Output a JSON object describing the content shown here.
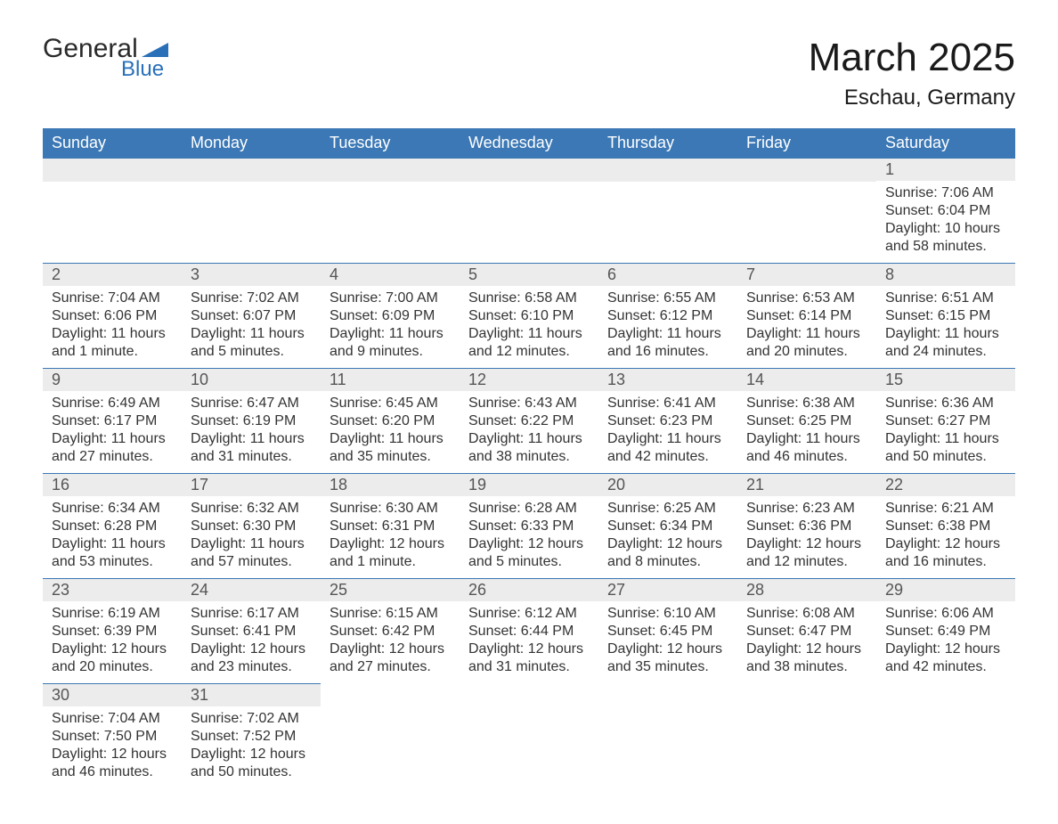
{
  "brand": {
    "word1": "General",
    "word2": "Blue"
  },
  "title": "March 2025",
  "location": "Eschau, Germany",
  "colors": {
    "header_bg": "#3b78b5",
    "header_fg": "#ffffff",
    "rule": "#3b78b5",
    "daynum_bg": "#ececec",
    "text": "#333333",
    "logo_accent": "#2970b8"
  },
  "typography": {
    "title_fontsize_pt": 33,
    "location_fontsize_pt": 18,
    "header_fontsize_pt": 14,
    "daynum_fontsize_pt": 14,
    "detail_fontsize_pt": 12
  },
  "calendar": {
    "columns": [
      "Sunday",
      "Monday",
      "Tuesday",
      "Wednesday",
      "Thursday",
      "Friday",
      "Saturday"
    ],
    "weeks": [
      [
        {
          "day": ""
        },
        {
          "day": ""
        },
        {
          "day": ""
        },
        {
          "day": ""
        },
        {
          "day": ""
        },
        {
          "day": ""
        },
        {
          "day": "1",
          "sunrise": "Sunrise: 7:06 AM",
          "sunset": "Sunset: 6:04 PM",
          "daylight1": "Daylight: 10 hours",
          "daylight2": "and 58 minutes."
        }
      ],
      [
        {
          "day": "2",
          "sunrise": "Sunrise: 7:04 AM",
          "sunset": "Sunset: 6:06 PM",
          "daylight1": "Daylight: 11 hours",
          "daylight2": "and 1 minute."
        },
        {
          "day": "3",
          "sunrise": "Sunrise: 7:02 AM",
          "sunset": "Sunset: 6:07 PM",
          "daylight1": "Daylight: 11 hours",
          "daylight2": "and 5 minutes."
        },
        {
          "day": "4",
          "sunrise": "Sunrise: 7:00 AM",
          "sunset": "Sunset: 6:09 PM",
          "daylight1": "Daylight: 11 hours",
          "daylight2": "and 9 minutes."
        },
        {
          "day": "5",
          "sunrise": "Sunrise: 6:58 AM",
          "sunset": "Sunset: 6:10 PM",
          "daylight1": "Daylight: 11 hours",
          "daylight2": "and 12 minutes."
        },
        {
          "day": "6",
          "sunrise": "Sunrise: 6:55 AM",
          "sunset": "Sunset: 6:12 PM",
          "daylight1": "Daylight: 11 hours",
          "daylight2": "and 16 minutes."
        },
        {
          "day": "7",
          "sunrise": "Sunrise: 6:53 AM",
          "sunset": "Sunset: 6:14 PM",
          "daylight1": "Daylight: 11 hours",
          "daylight2": "and 20 minutes."
        },
        {
          "day": "8",
          "sunrise": "Sunrise: 6:51 AM",
          "sunset": "Sunset: 6:15 PM",
          "daylight1": "Daylight: 11 hours",
          "daylight2": "and 24 minutes."
        }
      ],
      [
        {
          "day": "9",
          "sunrise": "Sunrise: 6:49 AM",
          "sunset": "Sunset: 6:17 PM",
          "daylight1": "Daylight: 11 hours",
          "daylight2": "and 27 minutes."
        },
        {
          "day": "10",
          "sunrise": "Sunrise: 6:47 AM",
          "sunset": "Sunset: 6:19 PM",
          "daylight1": "Daylight: 11 hours",
          "daylight2": "and 31 minutes."
        },
        {
          "day": "11",
          "sunrise": "Sunrise: 6:45 AM",
          "sunset": "Sunset: 6:20 PM",
          "daylight1": "Daylight: 11 hours",
          "daylight2": "and 35 minutes."
        },
        {
          "day": "12",
          "sunrise": "Sunrise: 6:43 AM",
          "sunset": "Sunset: 6:22 PM",
          "daylight1": "Daylight: 11 hours",
          "daylight2": "and 38 minutes."
        },
        {
          "day": "13",
          "sunrise": "Sunrise: 6:41 AM",
          "sunset": "Sunset: 6:23 PM",
          "daylight1": "Daylight: 11 hours",
          "daylight2": "and 42 minutes."
        },
        {
          "day": "14",
          "sunrise": "Sunrise: 6:38 AM",
          "sunset": "Sunset: 6:25 PM",
          "daylight1": "Daylight: 11 hours",
          "daylight2": "and 46 minutes."
        },
        {
          "day": "15",
          "sunrise": "Sunrise: 6:36 AM",
          "sunset": "Sunset: 6:27 PM",
          "daylight1": "Daylight: 11 hours",
          "daylight2": "and 50 minutes."
        }
      ],
      [
        {
          "day": "16",
          "sunrise": "Sunrise: 6:34 AM",
          "sunset": "Sunset: 6:28 PM",
          "daylight1": "Daylight: 11 hours",
          "daylight2": "and 53 minutes."
        },
        {
          "day": "17",
          "sunrise": "Sunrise: 6:32 AM",
          "sunset": "Sunset: 6:30 PM",
          "daylight1": "Daylight: 11 hours",
          "daylight2": "and 57 minutes."
        },
        {
          "day": "18",
          "sunrise": "Sunrise: 6:30 AM",
          "sunset": "Sunset: 6:31 PM",
          "daylight1": "Daylight: 12 hours",
          "daylight2": "and 1 minute."
        },
        {
          "day": "19",
          "sunrise": "Sunrise: 6:28 AM",
          "sunset": "Sunset: 6:33 PM",
          "daylight1": "Daylight: 12 hours",
          "daylight2": "and 5 minutes."
        },
        {
          "day": "20",
          "sunrise": "Sunrise: 6:25 AM",
          "sunset": "Sunset: 6:34 PM",
          "daylight1": "Daylight: 12 hours",
          "daylight2": "and 8 minutes."
        },
        {
          "day": "21",
          "sunrise": "Sunrise: 6:23 AM",
          "sunset": "Sunset: 6:36 PM",
          "daylight1": "Daylight: 12 hours",
          "daylight2": "and 12 minutes."
        },
        {
          "day": "22",
          "sunrise": "Sunrise: 6:21 AM",
          "sunset": "Sunset: 6:38 PM",
          "daylight1": "Daylight: 12 hours",
          "daylight2": "and 16 minutes."
        }
      ],
      [
        {
          "day": "23",
          "sunrise": "Sunrise: 6:19 AM",
          "sunset": "Sunset: 6:39 PM",
          "daylight1": "Daylight: 12 hours",
          "daylight2": "and 20 minutes."
        },
        {
          "day": "24",
          "sunrise": "Sunrise: 6:17 AM",
          "sunset": "Sunset: 6:41 PM",
          "daylight1": "Daylight: 12 hours",
          "daylight2": "and 23 minutes."
        },
        {
          "day": "25",
          "sunrise": "Sunrise: 6:15 AM",
          "sunset": "Sunset: 6:42 PM",
          "daylight1": "Daylight: 12 hours",
          "daylight2": "and 27 minutes."
        },
        {
          "day": "26",
          "sunrise": "Sunrise: 6:12 AM",
          "sunset": "Sunset: 6:44 PM",
          "daylight1": "Daylight: 12 hours",
          "daylight2": "and 31 minutes."
        },
        {
          "day": "27",
          "sunrise": "Sunrise: 6:10 AM",
          "sunset": "Sunset: 6:45 PM",
          "daylight1": "Daylight: 12 hours",
          "daylight2": "and 35 minutes."
        },
        {
          "day": "28",
          "sunrise": "Sunrise: 6:08 AM",
          "sunset": "Sunset: 6:47 PM",
          "daylight1": "Daylight: 12 hours",
          "daylight2": "and 38 minutes."
        },
        {
          "day": "29",
          "sunrise": "Sunrise: 6:06 AM",
          "sunset": "Sunset: 6:49 PM",
          "daylight1": "Daylight: 12 hours",
          "daylight2": "and 42 minutes."
        }
      ],
      [
        {
          "day": "30",
          "sunrise": "Sunrise: 7:04 AM",
          "sunset": "Sunset: 7:50 PM",
          "daylight1": "Daylight: 12 hours",
          "daylight2": "and 46 minutes."
        },
        {
          "day": "31",
          "sunrise": "Sunrise: 7:02 AM",
          "sunset": "Sunset: 7:52 PM",
          "daylight1": "Daylight: 12 hours",
          "daylight2": "and 50 minutes."
        },
        {
          "day": ""
        },
        {
          "day": ""
        },
        {
          "day": ""
        },
        {
          "day": ""
        },
        {
          "day": ""
        }
      ]
    ]
  }
}
